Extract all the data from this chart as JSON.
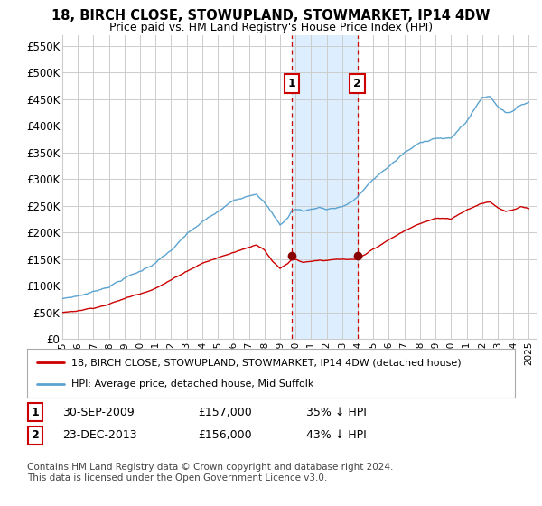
{
  "title": "18, BIRCH CLOSE, STOWUPLAND, STOWMARKET, IP14 4DW",
  "subtitle": "Price paid vs. HM Land Registry's House Price Index (HPI)",
  "hpi_label": "HPI: Average price, detached house, Mid Suffolk",
  "property_label": "18, BIRCH CLOSE, STOWUPLAND, STOWMARKET, IP14 4DW (detached house)",
  "footer": "Contains HM Land Registry data © Crown copyright and database right 2024.\nThis data is licensed under the Open Government Licence v3.0.",
  "transaction1_date": "30-SEP-2009",
  "transaction1_price": "£157,000",
  "transaction1_pct": "35% ↓ HPI",
  "transaction1_x": 2009.75,
  "transaction1_y": 157000,
  "transaction2_date": "23-DEC-2013",
  "transaction2_price": "£156,000",
  "transaction2_pct": "43% ↓ HPI",
  "transaction2_x": 2013.97,
  "transaction2_y": 156000,
  "ylim": [
    0,
    570000
  ],
  "xlim": [
    1995.0,
    2025.5
  ],
  "yticks": [
    0,
    50000,
    100000,
    150000,
    200000,
    250000,
    300000,
    350000,
    400000,
    450000,
    500000,
    550000
  ],
  "ytick_labels": [
    "£0",
    "£50K",
    "£100K",
    "£150K",
    "£200K",
    "£250K",
    "£300K",
    "£350K",
    "£400K",
    "£450K",
    "£500K",
    "£550K"
  ],
  "hpi_color": "#5ba3d0",
  "property_color": "#cc0000",
  "shade_color": "#ddeeff",
  "grid_color": "#cccccc",
  "bg_color": "#ffffff"
}
